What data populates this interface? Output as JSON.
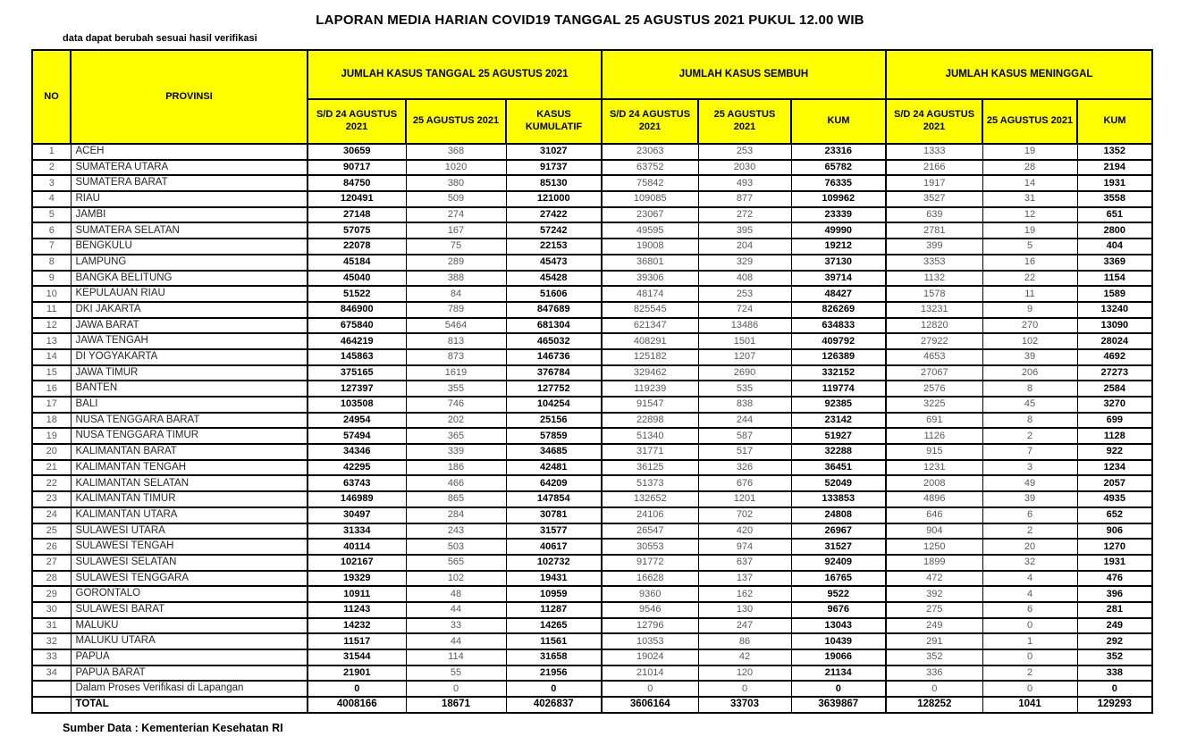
{
  "title": "LAPORAN MEDIA HARIAN COVID19 TANGGAL 25 AGUSTUS 2021 PUKUL 12.00 WIB",
  "note": "data dapat berubah sesuai hasil verifikasi",
  "source": "Sumber Data : Kementerian Kesehatan RI",
  "colors": {
    "header_bg": "#ffff00",
    "border": "#000000",
    "bold_text": "#000000",
    "regular_text": "#595959"
  },
  "table": {
    "header": {
      "no": "NO",
      "provinsi": "PROVINSI",
      "groups": [
        {
          "label": "JUMLAH KASUS TANGGAL 25 AGUSTUS 2021",
          "sub": [
            "S/D 24 AGUSTUS 2021",
            "25 AGUSTUS 2021",
            "KASUS KUMULATIF"
          ]
        },
        {
          "label": "JUMLAH KASUS SEMBUH",
          "sub": [
            "S/D 24 AGUSTUS 2021",
            "25 AGUSTUS 2021",
            "KUM"
          ]
        },
        {
          "label": "JUMLAH KASUS MENINGGAL",
          "sub": [
            "S/D 24 AGUSTUS 2021",
            "25 AGUSTUS 2021",
            "KUM"
          ]
        }
      ]
    },
    "bold_value_columns": [
      0,
      2,
      5,
      8
    ],
    "group_start_columns": [
      0,
      3,
      6
    ],
    "rows": [
      {
        "no": "1",
        "provinsi": "ACEH",
        "values": [
          30659,
          368,
          31027,
          23063,
          253,
          23316,
          1333,
          19,
          1352
        ]
      },
      {
        "no": "2",
        "provinsi": "SUMATERA UTARA",
        "values": [
          90717,
          1020,
          91737,
          63752,
          2030,
          65782,
          2166,
          28,
          2194
        ]
      },
      {
        "no": "3",
        "provinsi": "SUMATERA BARAT",
        "values": [
          84750,
          380,
          85130,
          75842,
          493,
          76335,
          1917,
          14,
          1931
        ]
      },
      {
        "no": "4",
        "provinsi": "RIAU",
        "values": [
          120491,
          509,
          121000,
          109085,
          877,
          109962,
          3527,
          31,
          3558
        ]
      },
      {
        "no": "5",
        "provinsi": "JAMBI",
        "values": [
          27148,
          274,
          27422,
          23067,
          272,
          23339,
          639,
          12,
          651
        ]
      },
      {
        "no": "6",
        "provinsi": "SUMATERA SELATAN",
        "values": [
          57075,
          167,
          57242,
          49595,
          395,
          49990,
          2781,
          19,
          2800
        ]
      },
      {
        "no": "7",
        "provinsi": "BENGKULU",
        "values": [
          22078,
          75,
          22153,
          19008,
          204,
          19212,
          399,
          5,
          404
        ]
      },
      {
        "no": "8",
        "provinsi": "LAMPUNG",
        "values": [
          45184,
          289,
          45473,
          36801,
          329,
          37130,
          3353,
          16,
          3369
        ]
      },
      {
        "no": "9",
        "provinsi": "BANGKA BELITUNG",
        "values": [
          45040,
          388,
          45428,
          39306,
          408,
          39714,
          1132,
          22,
          1154
        ]
      },
      {
        "no": "10",
        "provinsi": "KEPULAUAN RIAU",
        "values": [
          51522,
          84,
          51606,
          48174,
          253,
          48427,
          1578,
          11,
          1589
        ]
      },
      {
        "no": "11",
        "provinsi": "DKI JAKARTA",
        "values": [
          846900,
          789,
          847689,
          825545,
          724,
          826269,
          13231,
          9,
          13240
        ]
      },
      {
        "no": "12",
        "provinsi": "JAWA BARAT",
        "values": [
          675840,
          5464,
          681304,
          621347,
          13486,
          634833,
          12820,
          270,
          13090
        ]
      },
      {
        "no": "13",
        "provinsi": "JAWA TENGAH",
        "values": [
          464219,
          813,
          465032,
          408291,
          1501,
          409792,
          27922,
          102,
          28024
        ]
      },
      {
        "no": "14",
        "provinsi": "DI YOGYAKARTA",
        "values": [
          145863,
          873,
          146736,
          125182,
          1207,
          126389,
          4653,
          39,
          4692
        ]
      },
      {
        "no": "15",
        "provinsi": "JAWA TIMUR",
        "values": [
          375165,
          1619,
          376784,
          329462,
          2690,
          332152,
          27067,
          206,
          27273
        ]
      },
      {
        "no": "16",
        "provinsi": "BANTEN",
        "values": [
          127397,
          355,
          127752,
          119239,
          535,
          119774,
          2576,
          8,
          2584
        ]
      },
      {
        "no": "17",
        "provinsi": "BALI",
        "values": [
          103508,
          746,
          104254,
          91547,
          838,
          92385,
          3225,
          45,
          3270
        ]
      },
      {
        "no": "18",
        "provinsi": "NUSA TENGGARA BARAT",
        "values": [
          24954,
          202,
          25156,
          22898,
          244,
          23142,
          691,
          8,
          699
        ]
      },
      {
        "no": "19",
        "provinsi": "NUSA TENGGARA TIMUR",
        "values": [
          57494,
          365,
          57859,
          51340,
          587,
          51927,
          1126,
          2,
          1128
        ]
      },
      {
        "no": "20",
        "provinsi": "KALIMANTAN BARAT",
        "values": [
          34346,
          339,
          34685,
          31771,
          517,
          32288,
          915,
          7,
          922
        ]
      },
      {
        "no": "21",
        "provinsi": "KALIMANTAN TENGAH",
        "values": [
          42295,
          186,
          42481,
          36125,
          326,
          36451,
          1231,
          3,
          1234
        ]
      },
      {
        "no": "22",
        "provinsi": "KALIMANTAN SELATAN",
        "values": [
          63743,
          466,
          64209,
          51373,
          676,
          52049,
          2008,
          49,
          2057
        ]
      },
      {
        "no": "23",
        "provinsi": "KALIMANTAN TIMUR",
        "values": [
          146989,
          865,
          147854,
          132652,
          1201,
          133853,
          4896,
          39,
          4935
        ]
      },
      {
        "no": "24",
        "provinsi": "KALIMANTAN UTARA",
        "values": [
          30497,
          284,
          30781,
          24106,
          702,
          24808,
          646,
          6,
          652
        ]
      },
      {
        "no": "25",
        "provinsi": "SULAWESI UTARA",
        "values": [
          31334,
          243,
          31577,
          26547,
          420,
          26967,
          904,
          2,
          906
        ]
      },
      {
        "no": "26",
        "provinsi": "SULAWESI TENGAH",
        "values": [
          40114,
          503,
          40617,
          30553,
          974,
          31527,
          1250,
          20,
          1270
        ]
      },
      {
        "no": "27",
        "provinsi": "SULAWESI SELATAN",
        "values": [
          102167,
          565,
          102732,
          91772,
          637,
          92409,
          1899,
          32,
          1931
        ]
      },
      {
        "no": "28",
        "provinsi": "SULAWESI TENGGARA",
        "values": [
          19329,
          102,
          19431,
          16628,
          137,
          16765,
          472,
          4,
          476
        ]
      },
      {
        "no": "29",
        "provinsi": "GORONTALO",
        "values": [
          10911,
          48,
          10959,
          9360,
          162,
          9522,
          392,
          4,
          396
        ]
      },
      {
        "no": "30",
        "provinsi": "SULAWESI BARAT",
        "values": [
          11243,
          44,
          11287,
          9546,
          130,
          9676,
          275,
          6,
          281
        ]
      },
      {
        "no": "31",
        "provinsi": "MALUKU",
        "values": [
          14232,
          33,
          14265,
          12796,
          247,
          13043,
          249,
          0,
          249
        ]
      },
      {
        "no": "32",
        "provinsi": "MALUKU UTARA",
        "values": [
          11517,
          44,
          11561,
          10353,
          86,
          10439,
          291,
          1,
          292
        ]
      },
      {
        "no": "33",
        "provinsi": "PAPUA",
        "values": [
          31544,
          114,
          31658,
          19024,
          42,
          19066,
          352,
          0,
          352
        ]
      },
      {
        "no": "34",
        "provinsi": "PAPUA BARAT",
        "values": [
          21901,
          55,
          21956,
          21014,
          120,
          21134,
          336,
          2,
          338
        ]
      },
      {
        "no": "",
        "provinsi": "Dalam Proses Verifikasi di Lapangan",
        "values": [
          0,
          0,
          0,
          0,
          0,
          0,
          0,
          0,
          0
        ]
      },
      {
        "no": "",
        "provinsi": "TOTAL",
        "total": true,
        "values": [
          4008166,
          18671,
          4026837,
          3606164,
          33703,
          3639867,
          128252,
          1041,
          129293
        ]
      }
    ]
  }
}
